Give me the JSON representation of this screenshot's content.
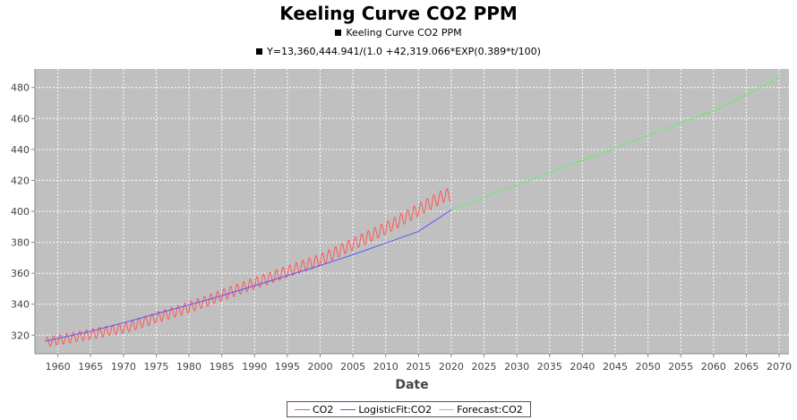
{
  "chart_data": {
    "type": "line",
    "title": "Keeling Curve CO2 PPM",
    "subtitles": [
      "Keeling Curve CO2 PPM",
      "Y=13,360,444.941/(1.0 +42,319.066*EXP(0.389*t/100)"
    ],
    "xlabel": "Date",
    "ylabel": "",
    "xlim": [
      1956.5,
      2071.5
    ],
    "ylim": [
      308,
      492
    ],
    "x_ticks": [
      1960,
      1965,
      1970,
      1975,
      1980,
      1985,
      1990,
      1995,
      2000,
      2005,
      2010,
      2015,
      2020,
      2025,
      2030,
      2035,
      2040,
      2045,
      2050,
      2055,
      2060,
      2065,
      2070
    ],
    "y_ticks": [
      320,
      340,
      360,
      380,
      400,
      420,
      440,
      460,
      480
    ],
    "grid": true,
    "legend_position": "bottom",
    "series": [
      {
        "name": "CO2",
        "color": "#ff5555",
        "style": "seasonal",
        "x_range": [
          1958.2,
          2019.9
        ],
        "trend": [
          [
            1958,
            315.3
          ],
          [
            1970,
            324.5
          ],
          [
            1980,
            338.0
          ],
          [
            1990,
            353.5
          ],
          [
            2000,
            368.5
          ],
          [
            2010,
            389.0
          ],
          [
            2019,
            410.5
          ]
        ],
        "seasonal_amplitude": 3.2
      },
      {
        "name": "LogisticFit:CO2",
        "color": "#5555ff",
        "x": [
          1958,
          1965,
          1970,
          1975,
          1980,
          1985,
          1990,
          1995,
          2000,
          2005,
          2010,
          2015,
          2020
        ],
        "values": [
          316,
          322.5,
          328,
          333.8,
          339.5,
          345.5,
          352,
          358.5,
          365,
          372,
          379.5,
          387,
          401
        ]
      },
      {
        "name": "Forecast:CO2",
        "color": "#66ee66",
        "x": [
          2020,
          2025,
          2030,
          2035,
          2040,
          2045,
          2050,
          2055,
          2060,
          2065,
          2070
        ],
        "values": [
          401,
          409,
          417,
          425,
          433,
          441,
          449,
          457,
          465,
          475,
          487
        ]
      }
    ]
  }
}
